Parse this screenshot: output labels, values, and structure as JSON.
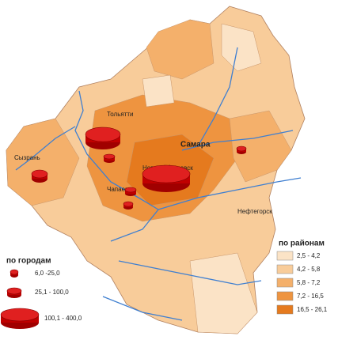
{
  "places": [
    "Самара",
    "Тольятти",
    "Сызрань",
    "Новокуйбышевск",
    "Чапаевск",
    "Нефтегорск"
  ],
  "legend_cities": {
    "title": "по городам",
    "items": [
      "6,0 -25,0",
      "25,1 - 100,0",
      "100,1 - 400,0"
    ]
  },
  "legend_districts": {
    "title": "по районам",
    "items": [
      {
        "label": "2,5 - 4,2",
        "color": "#fbe3c6"
      },
      {
        "label": "4,2 - 5,8",
        "color": "#f8cc9a"
      },
      {
        "label": "5,8 - 7,2",
        "color": "#f4b06b"
      },
      {
        "label": "7,2 - 16,5",
        "color": "#ee9440"
      },
      {
        "label": "16,5 - 26,1",
        "color": "#e57a1e"
      }
    ]
  }
}
